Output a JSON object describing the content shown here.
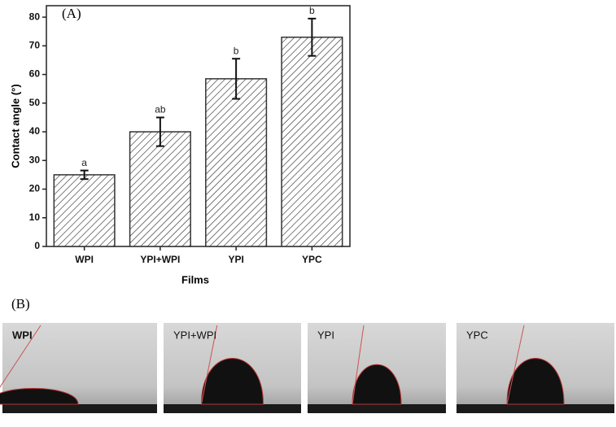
{
  "chart_data": {
    "type": "bar",
    "panel_label": "(A)",
    "y_label": "Contact angle (°)",
    "x_label": "Films",
    "categories": [
      "WPI",
      "YPI+WPI",
      "YPI",
      "YPC"
    ],
    "values": [
      25,
      40,
      58.5,
      73
    ],
    "errors": [
      1.5,
      5,
      7,
      6.5
    ],
    "letters": [
      "a",
      "ab",
      "b",
      "b"
    ],
    "color": "#333333",
    "ylim": [
      0,
      84
    ],
    "yticks": [
      0,
      10,
      20,
      30,
      40,
      50,
      60,
      70,
      80
    ]
  },
  "photos": {
    "panel_label": "(B)",
    "panels": [
      "WPI",
      "YPI+WPI",
      "YPI",
      "YPC"
    ]
  }
}
